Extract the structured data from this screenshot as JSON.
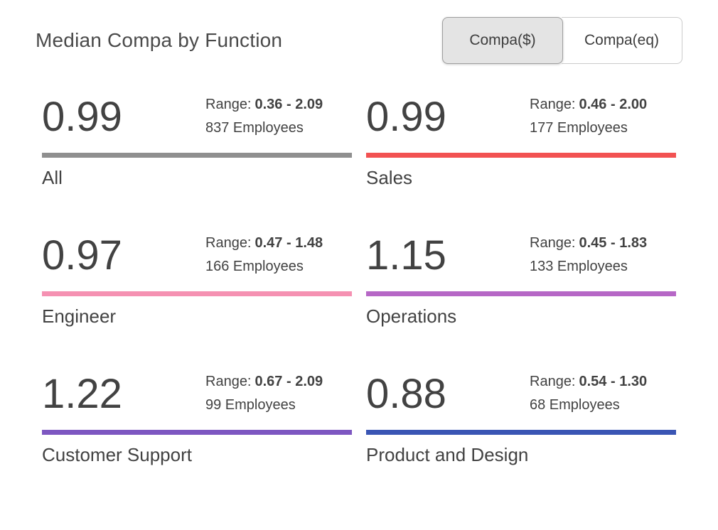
{
  "page": {
    "title": "Median Compa by Function"
  },
  "toggle": {
    "options": [
      {
        "label": "Compa($)",
        "selected": true
      },
      {
        "label": "Compa(eq)",
        "selected": false
      }
    ]
  },
  "labels": {
    "range_prefix": "Range:"
  },
  "cards": [
    {
      "label": "All",
      "value": "0.99",
      "range": "0.36 - 2.09",
      "employees": "837 Employees",
      "color": "#8f8f8f"
    },
    {
      "label": "Sales",
      "value": "0.99",
      "range": "0.46 - 2.00",
      "employees": "177 Employees",
      "color": "#f25252"
    },
    {
      "label": "Engineer",
      "value": "0.97",
      "range": "0.47 - 1.48",
      "employees": "166 Employees",
      "color": "#f591b2"
    },
    {
      "label": "Operations",
      "value": "1.15",
      "range": "0.45 - 1.83",
      "employees": "133 Employees",
      "color": "#b667c6"
    },
    {
      "label": "Customer Support",
      "value": "1.22",
      "range": "0.67 - 2.09",
      "employees": "99 Employees",
      "color": "#7d57c1"
    },
    {
      "label": "Product and Design",
      "value": "0.88",
      "range": "0.54 - 1.30",
      "employees": "68 Employees",
      "color": "#3a55b4"
    }
  ],
  "chart_data": {
    "type": "table",
    "title": "Median Compa by Function",
    "categories": [
      "All",
      "Sales",
      "Engineer",
      "Operations",
      "Customer Support",
      "Product and Design"
    ],
    "series": [
      {
        "name": "Median Compa",
        "values": [
          0.99,
          0.99,
          0.97,
          1.15,
          1.22,
          0.88
        ]
      },
      {
        "name": "Range Min",
        "values": [
          0.36,
          0.46,
          0.47,
          0.45,
          0.67,
          0.54
        ]
      },
      {
        "name": "Range Max",
        "values": [
          2.09,
          2.0,
          1.48,
          1.83,
          2.09,
          1.3
        ]
      },
      {
        "name": "Employees",
        "values": [
          837,
          177,
          166,
          133,
          99,
          68
        ]
      }
    ],
    "legend_colors": [
      "#8f8f8f",
      "#f25252",
      "#f591b2",
      "#b667c6",
      "#7d57c1",
      "#3a55b4"
    ],
    "layout": "2-column KPI card grid, colored underline per category, toggle Compa($)/Compa(eq) top-right"
  }
}
